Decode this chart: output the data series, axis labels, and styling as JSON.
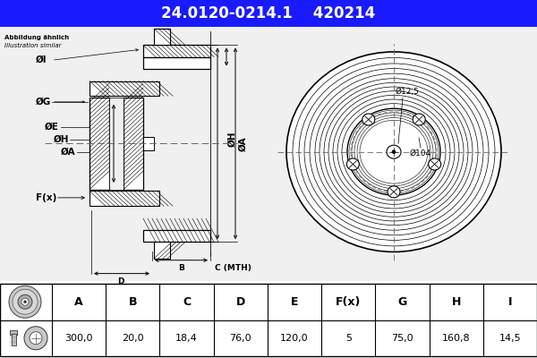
{
  "title_part1": "24.0120-0214.1",
  "title_part2": "420214",
  "title_bg": "#1a1aff",
  "title_fg": "#ffffff",
  "subtitle_line1": "Abbildung ähnlich",
  "subtitle_line2": "Illustration similar",
  "table_headers": [
    "A",
    "B",
    "C",
    "D",
    "E",
    "F(x)",
    "G",
    "H",
    "I"
  ],
  "table_values": [
    "300,0",
    "20,0",
    "18,4",
    "76,0",
    "120,0",
    "5",
    "75,0",
    "160,8",
    "14,5"
  ],
  "bg_color": "#f0f0f0",
  "white": "#ffffff",
  "black": "#000000",
  "hatch_color": "#000000",
  "line_color": "#000000",
  "dim_color": "#000000",
  "annot_104": "Ø104",
  "annot_125": "Ø12,5",
  "label_I": "ØI",
  "label_G": "ØG",
  "label_E": "ØE",
  "label_H": "ØH",
  "label_A": "ØA",
  "label_Fx": "F(x)",
  "label_B": "B",
  "label_C": "C (MTH)",
  "label_D": "D"
}
